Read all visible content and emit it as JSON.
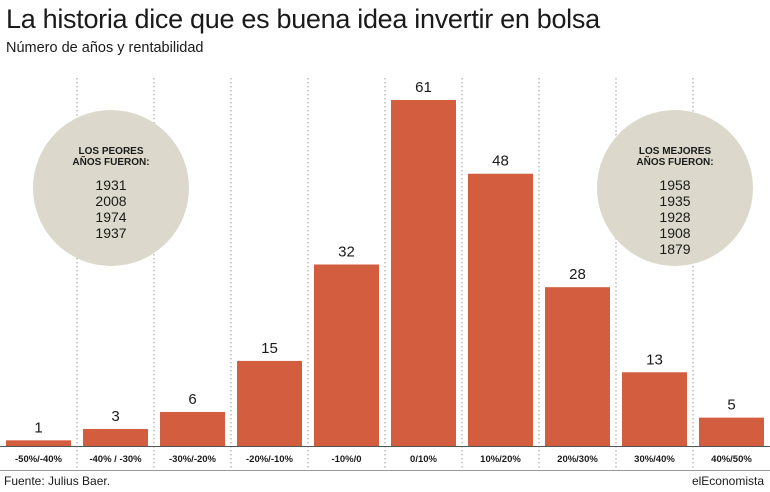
{
  "header": {
    "title": "La historia dice que es buena idea invertir en bolsa",
    "subtitle": "Número de años y rentabilidad"
  },
  "worst_badge": {
    "heading_line1": "LOS PEORES",
    "heading_line2": "AÑOS FUERON:",
    "years": [
      "1931",
      "2008",
      "1974",
      "1937"
    ]
  },
  "best_badge": {
    "heading_line1": "LOS MEJORES",
    "heading_line2": "AÑOS FUERON:",
    "years": [
      "1958",
      "1935",
      "1928",
      "1908",
      "1879"
    ]
  },
  "footer": {
    "source": "Fuente: Julius Baer.",
    "brand": "elEconomista"
  },
  "colors": {
    "bar": "#d35e3f",
    "badge": "#dcd9cc",
    "gridline": "#9a9a9a"
  },
  "chart_data": {
    "type": "bar",
    "categories": [
      "-50%/-40%",
      "-40% / -30%",
      "-30%/-20%",
      "-20%/-10%",
      "-10%/0",
      "0/10%",
      "10%/20%",
      "20%/30%",
      "30%/40%",
      "40%/50%"
    ],
    "values": [
      1,
      3,
      6,
      15,
      32,
      61,
      48,
      28,
      13,
      5
    ],
    "title": "La historia dice que es buena idea invertir en bolsa",
    "subtitle": "Número de años y rentabilidad",
    "xlabel": "",
    "ylabel": "",
    "ylim": [
      0,
      61
    ],
    "data_labels": true,
    "grid": "vertical dotted separators"
  }
}
